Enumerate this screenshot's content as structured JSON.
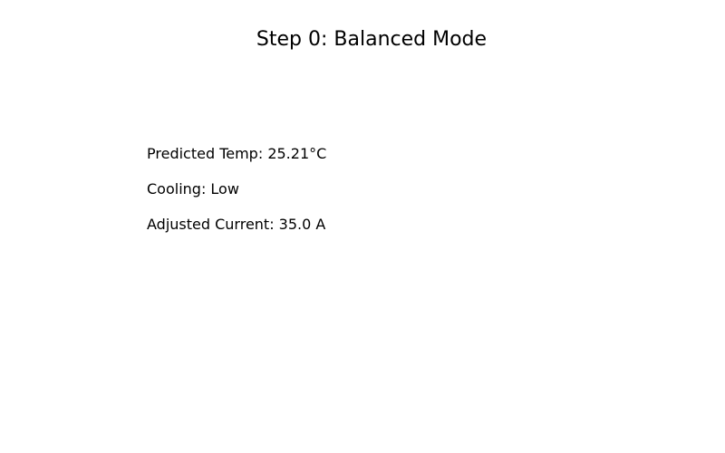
{
  "title": "Step 0: Balanced Mode",
  "readouts": {
    "predicted_temp": "Predicted Temp: 25.21°C",
    "cooling": "Cooling: Low",
    "adjusted_current": "Adjusted Current: 35.0 A"
  }
}
